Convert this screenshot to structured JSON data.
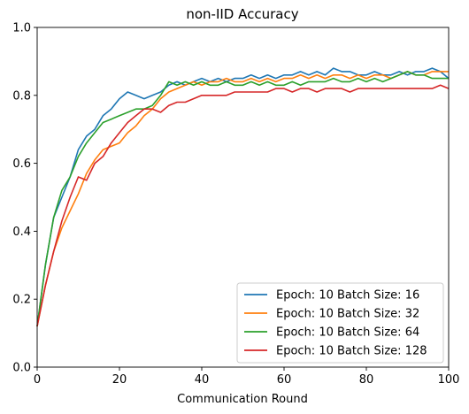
{
  "chart_data": {
    "type": "line",
    "title": "non-IID Accuracy",
    "xlabel": "Communication Round",
    "ylabel": "",
    "xlim": [
      0,
      100
    ],
    "ylim": [
      0.0,
      1.0
    ],
    "xticks": [
      "0",
      "20",
      "40",
      "60",
      "80",
      "100"
    ],
    "yticks": [
      "0.0",
      "0.2",
      "0.4",
      "0.6",
      "0.8",
      "1.0"
    ],
    "grid": false,
    "legend_position": "bottom-right",
    "series": [
      {
        "name": "Epoch: 10 Batch Size: 16",
        "color": "#1f77b4",
        "x": [
          0,
          2,
          4,
          6,
          8,
          10,
          12,
          14,
          16,
          18,
          20,
          22,
          24,
          26,
          28,
          30,
          32,
          34,
          36,
          38,
          40,
          42,
          44,
          46,
          48,
          50,
          52,
          54,
          56,
          58,
          60,
          62,
          64,
          66,
          68,
          70,
          72,
          74,
          76,
          78,
          80,
          82,
          84,
          86,
          88,
          90,
          92,
          94,
          96,
          98,
          100
        ],
        "y": [
          0.12,
          0.3,
          0.44,
          0.5,
          0.56,
          0.64,
          0.68,
          0.7,
          0.74,
          0.76,
          0.79,
          0.81,
          0.8,
          0.79,
          0.8,
          0.81,
          0.83,
          0.84,
          0.83,
          0.84,
          0.85,
          0.84,
          0.85,
          0.84,
          0.85,
          0.85,
          0.86,
          0.85,
          0.86,
          0.85,
          0.86,
          0.86,
          0.87,
          0.86,
          0.87,
          0.86,
          0.88,
          0.87,
          0.87,
          0.86,
          0.86,
          0.87,
          0.86,
          0.86,
          0.87,
          0.86,
          0.87,
          0.87,
          0.88,
          0.87,
          0.85
        ]
      },
      {
        "name": "Epoch: 10 Batch Size: 32",
        "color": "#ff7f0e",
        "x": [
          0,
          2,
          4,
          6,
          8,
          10,
          12,
          14,
          16,
          18,
          20,
          22,
          24,
          26,
          28,
          30,
          32,
          34,
          36,
          38,
          40,
          42,
          44,
          46,
          48,
          50,
          52,
          54,
          56,
          58,
          60,
          62,
          64,
          66,
          68,
          70,
          72,
          74,
          76,
          78,
          80,
          82,
          84,
          86,
          88,
          90,
          92,
          94,
          96,
          98,
          100
        ],
        "y": [
          0.12,
          0.24,
          0.34,
          0.41,
          0.46,
          0.51,
          0.57,
          0.61,
          0.64,
          0.65,
          0.66,
          0.69,
          0.71,
          0.74,
          0.76,
          0.79,
          0.81,
          0.82,
          0.83,
          0.84,
          0.83,
          0.84,
          0.84,
          0.85,
          0.84,
          0.84,
          0.85,
          0.84,
          0.85,
          0.84,
          0.85,
          0.85,
          0.86,
          0.85,
          0.86,
          0.85,
          0.86,
          0.86,
          0.85,
          0.86,
          0.85,
          0.86,
          0.86,
          0.85,
          0.86,
          0.87,
          0.86,
          0.86,
          0.87,
          0.87,
          0.87
        ]
      },
      {
        "name": "Epoch: 10 Batch Size: 64",
        "color": "#2ca02c",
        "x": [
          0,
          2,
          4,
          6,
          8,
          10,
          12,
          14,
          16,
          18,
          20,
          22,
          24,
          26,
          28,
          30,
          32,
          34,
          36,
          38,
          40,
          42,
          44,
          46,
          48,
          50,
          52,
          54,
          56,
          58,
          60,
          62,
          64,
          66,
          68,
          70,
          72,
          74,
          76,
          78,
          80,
          82,
          84,
          86,
          88,
          90,
          92,
          94,
          96,
          98,
          100
        ],
        "y": [
          0.12,
          0.3,
          0.44,
          0.52,
          0.56,
          0.62,
          0.66,
          0.69,
          0.72,
          0.73,
          0.74,
          0.75,
          0.76,
          0.76,
          0.77,
          0.8,
          0.84,
          0.83,
          0.84,
          0.83,
          0.84,
          0.83,
          0.83,
          0.84,
          0.83,
          0.83,
          0.84,
          0.83,
          0.84,
          0.83,
          0.83,
          0.84,
          0.83,
          0.84,
          0.84,
          0.84,
          0.85,
          0.84,
          0.84,
          0.85,
          0.84,
          0.85,
          0.84,
          0.85,
          0.86,
          0.87,
          0.86,
          0.86,
          0.85,
          0.85,
          0.85
        ]
      },
      {
        "name": "Epoch: 10 Batch Size: 128",
        "color": "#d62728",
        "x": [
          0,
          2,
          4,
          6,
          8,
          10,
          12,
          14,
          16,
          18,
          20,
          22,
          24,
          26,
          28,
          30,
          32,
          34,
          36,
          38,
          40,
          42,
          44,
          46,
          48,
          50,
          52,
          54,
          56,
          58,
          60,
          62,
          64,
          66,
          68,
          70,
          72,
          74,
          76,
          78,
          80,
          82,
          84,
          86,
          88,
          90,
          92,
          94,
          96,
          98,
          100
        ],
        "y": [
          0.12,
          0.24,
          0.34,
          0.43,
          0.5,
          0.56,
          0.55,
          0.6,
          0.62,
          0.66,
          0.69,
          0.72,
          0.74,
          0.76,
          0.76,
          0.75,
          0.77,
          0.78,
          0.78,
          0.79,
          0.8,
          0.8,
          0.8,
          0.8,
          0.81,
          0.81,
          0.81,
          0.81,
          0.81,
          0.82,
          0.82,
          0.81,
          0.82,
          0.82,
          0.81,
          0.82,
          0.82,
          0.82,
          0.81,
          0.82,
          0.82,
          0.82,
          0.82,
          0.82,
          0.82,
          0.82,
          0.82,
          0.82,
          0.82,
          0.83,
          0.82
        ]
      }
    ]
  }
}
